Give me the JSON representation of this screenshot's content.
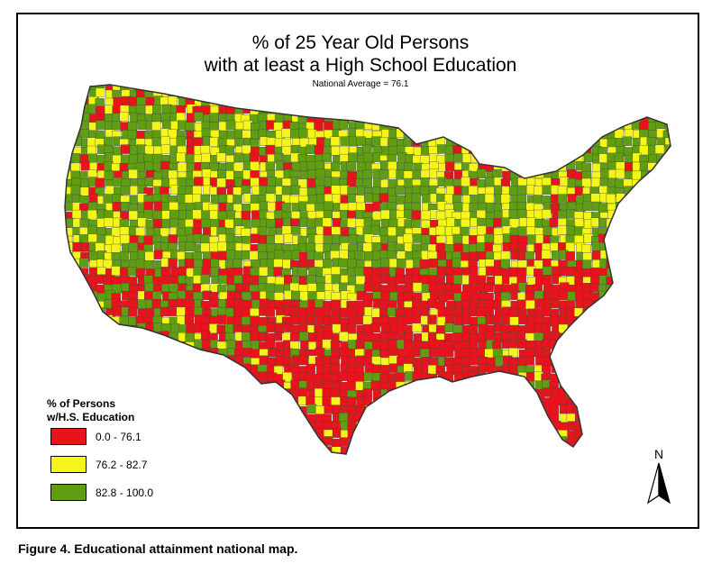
{
  "title": {
    "line1": "% of 25 Year Old Persons",
    "line2": "with at least a High School Education",
    "subtitle": "National Average = 76.1"
  },
  "legend": {
    "title_line1": "% of Persons",
    "title_line2": "w/H.S. Education",
    "items": [
      {
        "label": "0.0 - 76.1",
        "color": "#e8141b"
      },
      {
        "label": "76.2 - 82.7",
        "color": "#f5f51a"
      },
      {
        "label": "82.8 - 100.0",
        "color": "#5f9e12"
      }
    ]
  },
  "north_arrow": {
    "label": "N",
    "icon": "north-arrow-icon"
  },
  "caption": "Figure 4.  Educational attainment national map.",
  "colors": {
    "low": "#e8141b",
    "mid": "#f5f51a",
    "high": "#5f9e12",
    "border": "#333333"
  }
}
